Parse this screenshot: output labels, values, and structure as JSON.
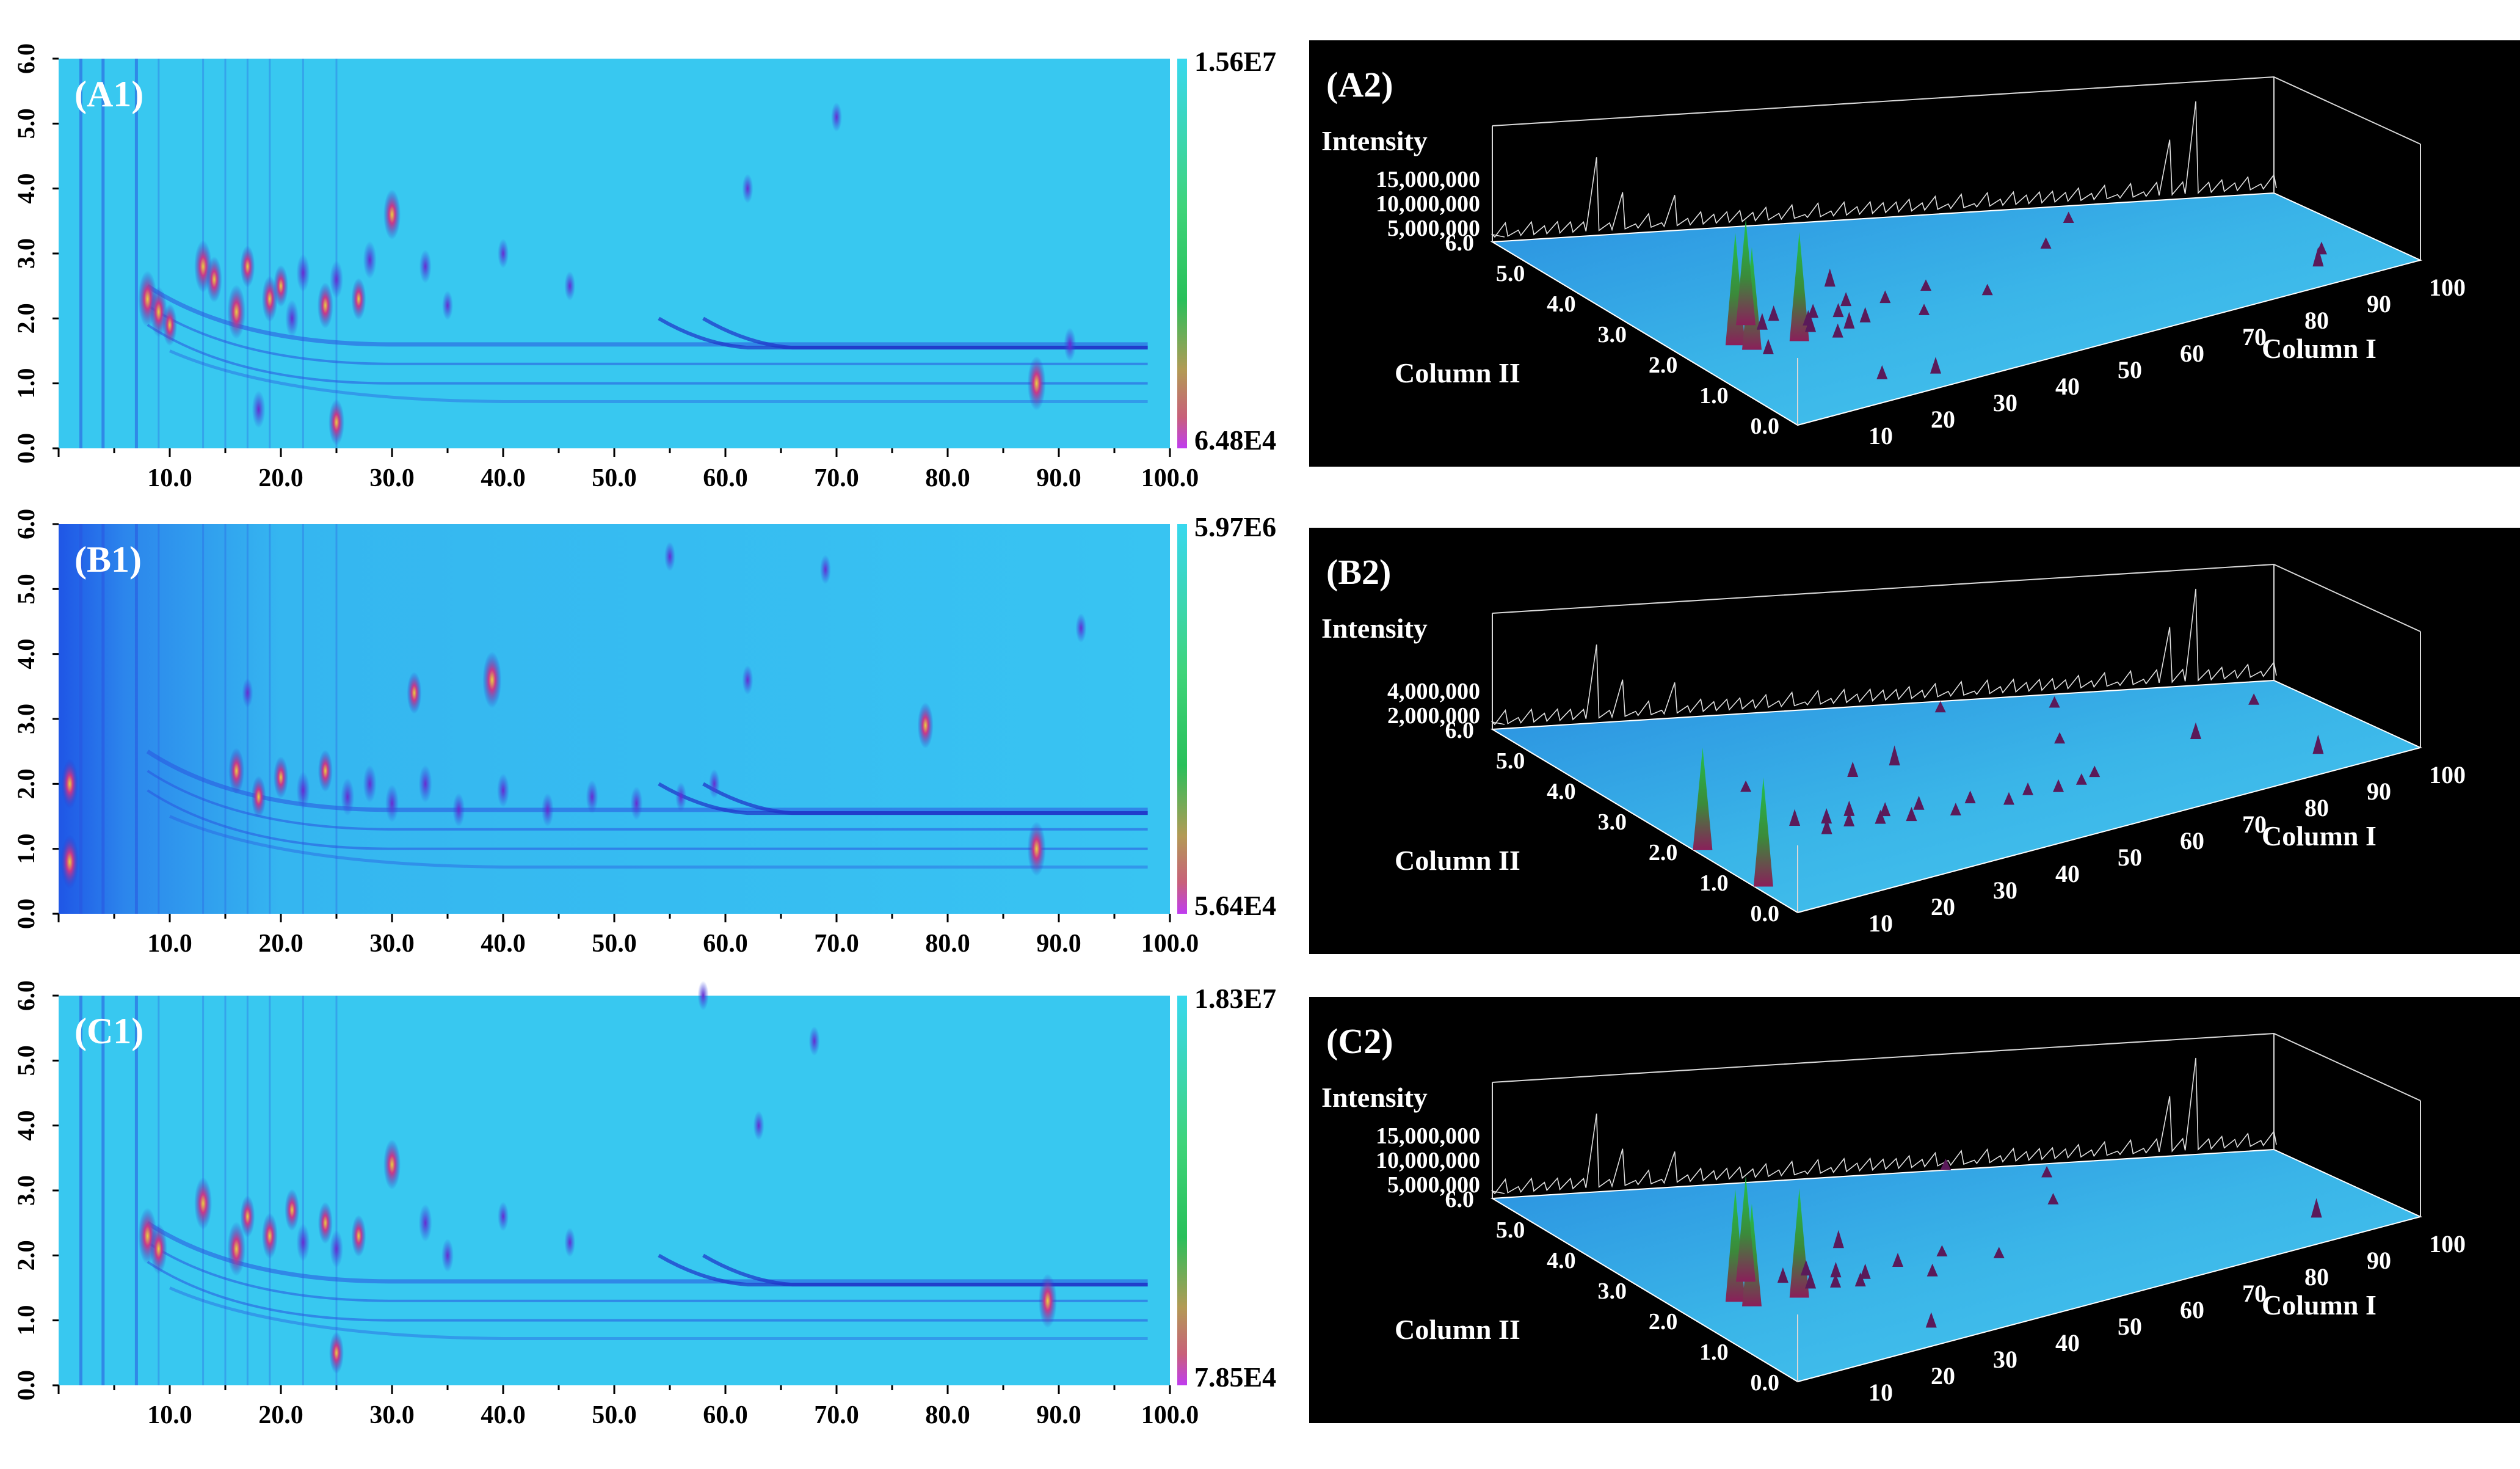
{
  "figure": {
    "panels_2d": [
      {
        "id": "A1",
        "label": "(A1)",
        "colorbar_max": "1.56E7",
        "colorbar_min": "6.48E4",
        "y_ticks": [
          "0.0",
          "1.0",
          "2.0",
          "3.0",
          "4.0",
          "5.0",
          "6.0"
        ],
        "x_ticks": [
          "10.0",
          "20.0",
          "30.0",
          "40.0",
          "50.0",
          "60.0",
          "70.0",
          "80.0",
          "90.0",
          "100.0"
        ]
      },
      {
        "id": "B1",
        "label": "(B1)",
        "colorbar_max": "5.97E6",
        "colorbar_min": "5.64E4",
        "y_ticks": [
          "0.0",
          "1.0",
          "2.0",
          "3.0",
          "4.0",
          "5.0",
          "6.0"
        ],
        "x_ticks": [
          "10.0",
          "20.0",
          "30.0",
          "40.0",
          "50.0",
          "60.0",
          "70.0",
          "80.0",
          "90.0",
          "100.0"
        ]
      },
      {
        "id": "C1",
        "label": "(C1)",
        "colorbar_max": "1.83E7",
        "colorbar_min": "7.85E4",
        "y_ticks": [
          "0.0",
          "1.0",
          "2.0",
          "3.0",
          "4.0",
          "5.0",
          "6.0"
        ],
        "x_ticks": [
          "10.0",
          "20.0",
          "30.0",
          "40.0",
          "50.0",
          "60.0",
          "70.0",
          "80.0",
          "90.0",
          "100.0"
        ]
      }
    ],
    "panels_3d": [
      {
        "id": "A2",
        "label": "(A2)",
        "intensity_label": "Intensity",
        "intensity_ticks": [
          "15,000,000",
          "10,000,000",
          "5,000,000"
        ],
        "col2_label": "Column II",
        "col2_ticks": [
          "6.0",
          "5.0",
          "4.0",
          "3.0",
          "2.0",
          "1.0",
          "0.0"
        ],
        "col1_label": "Column I",
        "col1_ticks": [
          "10",
          "20",
          "30",
          "40",
          "50",
          "60",
          "70",
          "80",
          "90",
          "100"
        ]
      },
      {
        "id": "B2",
        "label": "(B2)",
        "intensity_label": "Intensity",
        "intensity_ticks": [
          "4,000,000",
          "2,000,000"
        ],
        "col2_label": "Column II",
        "col2_ticks": [
          "6.0",
          "5.0",
          "4.0",
          "3.0",
          "2.0",
          "1.0",
          "0.0"
        ],
        "col1_label": "Column I",
        "col1_ticks": [
          "10",
          "20",
          "30",
          "40",
          "50",
          "60",
          "70",
          "80",
          "90",
          "100"
        ]
      },
      {
        "id": "C2",
        "label": "(C2)",
        "intensity_label": "Intensity",
        "intensity_ticks": [
          "15,000,000",
          "10,000,000",
          "5,000,000"
        ],
        "col2_label": "Column II",
        "col2_ticks": [
          "6.0",
          "5.0",
          "4.0",
          "3.0",
          "2.0",
          "1.0",
          "0.0"
        ],
        "col1_label": "Column I",
        "col1_ticks": [
          "10",
          "20",
          "30",
          "40",
          "50",
          "60",
          "70",
          "80",
          "90",
          "100"
        ]
      }
    ]
  },
  "chart_data": [
    {
      "type": "heatmap",
      "title": "(A1)",
      "x_range": [
        0,
        100
      ],
      "y_range": [
        0,
        6
      ],
      "colorbar": {
        "max": "1.56E7",
        "min": "6.48E4"
      },
      "peaks": [
        [
          8,
          2.3,
          0.95
        ],
        [
          9,
          2.1,
          0.8
        ],
        [
          10,
          1.9,
          0.6
        ],
        [
          13,
          2.8,
          0.85
        ],
        [
          14,
          2.6,
          0.7
        ],
        [
          16,
          2.1,
          0.9
        ],
        [
          17,
          2.8,
          0.6
        ],
        [
          19,
          2.3,
          0.7
        ],
        [
          20,
          2.5,
          0.6
        ],
        [
          21,
          2.0,
          0.5
        ],
        [
          22,
          2.7,
          0.5
        ],
        [
          24,
          2.2,
          0.7
        ],
        [
          25,
          2.6,
          0.5
        ],
        [
          27,
          2.3,
          0.6
        ],
        [
          28,
          2.9,
          0.5
        ],
        [
          30,
          3.6,
          0.8
        ],
        [
          33,
          2.8,
          0.4
        ],
        [
          35,
          2.2,
          0.3
        ],
        [
          40,
          3.0,
          0.3
        ],
        [
          46,
          2.5,
          0.3
        ],
        [
          88,
          1.0,
          0.9
        ],
        [
          91,
          1.6,
          0.4
        ],
        [
          70,
          5.1,
          0.3
        ],
        [
          62,
          4.0,
          0.3
        ],
        [
          18,
          0.6,
          0.5
        ],
        [
          25,
          0.4,
          0.7
        ]
      ]
    },
    {
      "type": "heatmap",
      "title": "(B1)",
      "x_range": [
        0,
        100
      ],
      "y_range": [
        0,
        6
      ],
      "colorbar": {
        "max": "5.97E6",
        "min": "5.64E4"
      },
      "peaks": [
        [
          1,
          0.8,
          0.9
        ],
        [
          1,
          2.0,
          0.8
        ],
        [
          39,
          3.6,
          0.95
        ],
        [
          32,
          3.4,
          0.6
        ],
        [
          78,
          2.9,
          0.7
        ],
        [
          88,
          1.0,
          0.9
        ],
        [
          16,
          2.2,
          0.7
        ],
        [
          18,
          1.8,
          0.6
        ],
        [
          20,
          2.1,
          0.6
        ],
        [
          22,
          1.9,
          0.5
        ],
        [
          24,
          2.2,
          0.6
        ],
        [
          26,
          1.8,
          0.5
        ],
        [
          28,
          2.0,
          0.5
        ],
        [
          30,
          1.7,
          0.5
        ],
        [
          33,
          2.0,
          0.5
        ],
        [
          36,
          1.6,
          0.4
        ],
        [
          40,
          1.9,
          0.4
        ],
        [
          44,
          1.6,
          0.4
        ],
        [
          48,
          1.8,
          0.4
        ],
        [
          52,
          1.7,
          0.4
        ],
        [
          56,
          1.8,
          0.3
        ],
        [
          59,
          2.0,
          0.3
        ],
        [
          55,
          5.5,
          0.3
        ],
        [
          69,
          5.3,
          0.3
        ],
        [
          92,
          4.4,
          0.3
        ],
        [
          62,
          3.6,
          0.3
        ],
        [
          17,
          3.4,
          0.3
        ]
      ]
    },
    {
      "type": "heatmap",
      "title": "(C1)",
      "x_range": [
        0,
        100
      ],
      "y_range": [
        0,
        6
      ],
      "colorbar": {
        "max": "1.83E7",
        "min": "7.85E4"
      },
      "peaks": [
        [
          8,
          2.3,
          0.95
        ],
        [
          9,
          2.1,
          0.8
        ],
        [
          13,
          2.8,
          0.85
        ],
        [
          16,
          2.1,
          0.9
        ],
        [
          17,
          2.6,
          0.6
        ],
        [
          19,
          2.3,
          0.7
        ],
        [
          21,
          2.7,
          0.6
        ],
        [
          22,
          2.2,
          0.5
        ],
        [
          24,
          2.5,
          0.6
        ],
        [
          25,
          2.1,
          0.5
        ],
        [
          27,
          2.3,
          0.6
        ],
        [
          30,
          3.4,
          0.8
        ],
        [
          33,
          2.5,
          0.5
        ],
        [
          35,
          2.0,
          0.4
        ],
        [
          40,
          2.6,
          0.3
        ],
        [
          46,
          2.2,
          0.3
        ],
        [
          89,
          1.3,
          0.9
        ],
        [
          68,
          5.3,
          0.3
        ],
        [
          63,
          4.0,
          0.3
        ],
        [
          58,
          6.0,
          0.3
        ],
        [
          25,
          0.5,
          0.6
        ]
      ]
    }
  ],
  "colors": {
    "map_bg": "#38c8f0",
    "map_bg_dark": "#1f56e6",
    "streak": "#2a54e0",
    "panel3d_bg": "#000000",
    "floor": "#3ab5e8",
    "label_white": "#ffffff",
    "text_black": "#000000"
  }
}
